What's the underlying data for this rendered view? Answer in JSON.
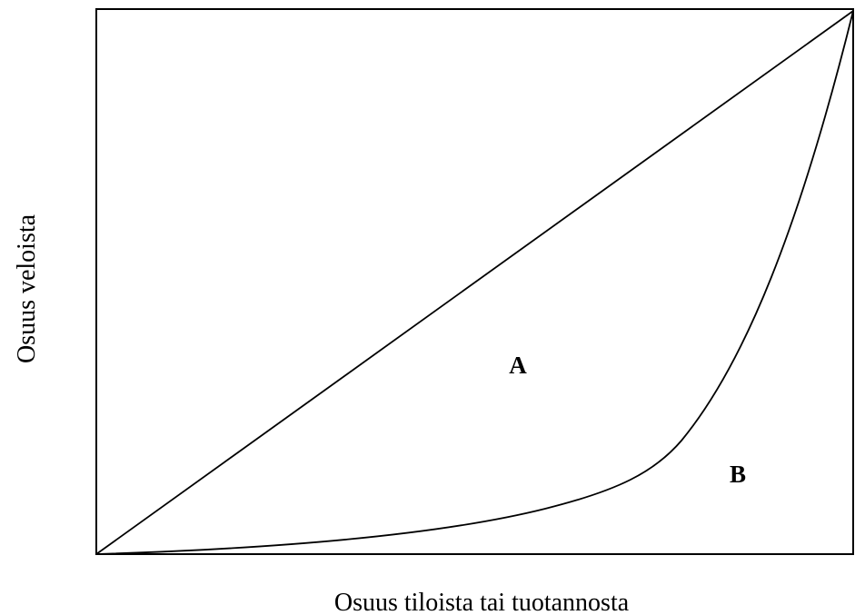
{
  "diagram": {
    "x_label": "Osuus tiloista tai tuotannosta",
    "y_label": "Osuus veloista",
    "regions": [
      "A",
      "B"
    ]
  }
}
